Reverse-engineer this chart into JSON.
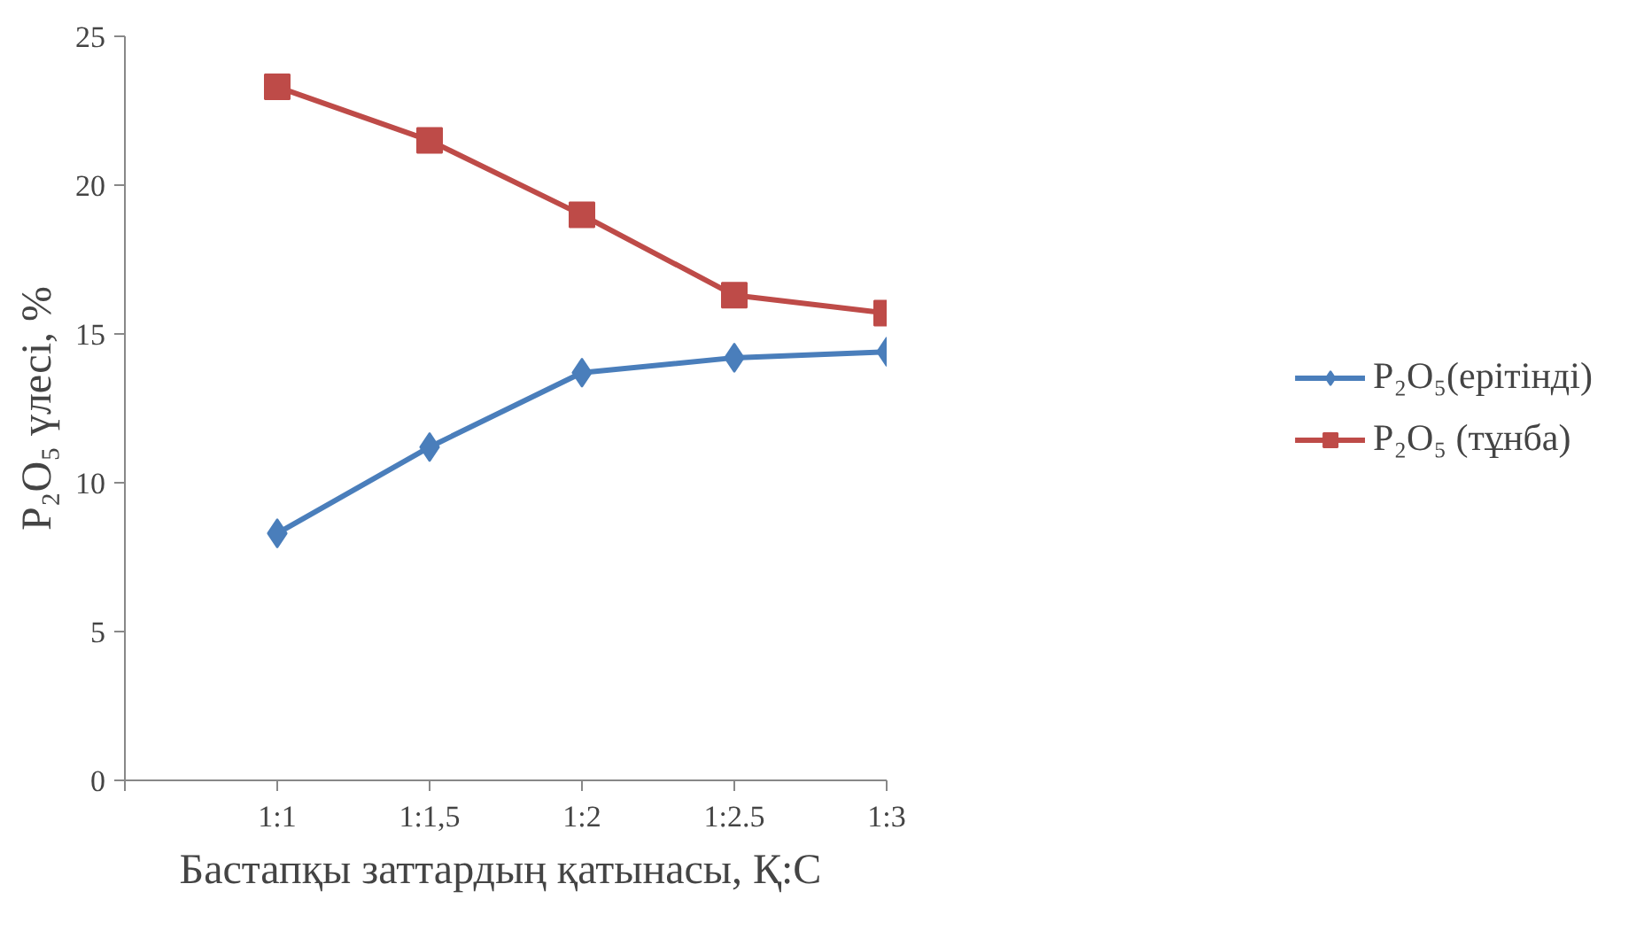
{
  "chart_data": {
    "type": "line",
    "xlabel": "Бастапқы заттардың қатынасы,  Қ:С",
    "ylabel": "P₂O₅ үлесі, %",
    "categories": [
      null,
      "1:1",
      "1:1,5",
      "1:2",
      "1:2.5",
      "1:3"
    ],
    "series": [
      {
        "name": "P₂O₅(ерітінді)",
        "color": "#4a7ebb",
        "marker": "diamond",
        "values": [
          null,
          8.3,
          11.2,
          13.7,
          14.2,
          14.4
        ]
      },
      {
        "name": "P₂O₅ (тұнба)",
        "color": "#be4b48",
        "marker": "square",
        "values": [
          null,
          23.3,
          21.5,
          19.0,
          16.3,
          15.7
        ]
      }
    ],
    "ylim": [
      0,
      25
    ],
    "yticks": [
      0,
      5,
      10,
      15,
      20,
      25
    ],
    "grid": false,
    "legend": "right",
    "line_style": "solid"
  }
}
